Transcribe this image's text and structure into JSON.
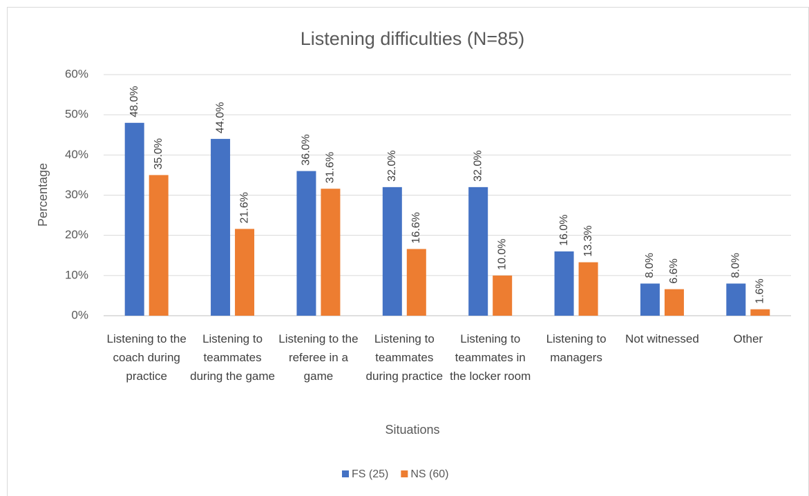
{
  "chart_data": {
    "type": "bar",
    "title": "Listening difficulties (N=85)",
    "x_label": "Situations",
    "y_label": "Percentage",
    "categories": [
      "Listening to the coach during practice",
      "Listening to teammates during the game",
      "Listening to the referee in a game",
      "Listening to teammates during practice",
      "Listening to teammates in the locker room",
      "Listening to managers",
      "Not witnessed",
      "Other"
    ],
    "series": [
      {
        "name": "FS (25)",
        "color": "#4472c4",
        "values": [
          48,
          44,
          36,
          32,
          32,
          16,
          8,
          8
        ],
        "value_labels": [
          "48.0%",
          "44.0%",
          "36.0%",
          "32.0%",
          "32.0%",
          "16.0%",
          "8.0%",
          "8.0%"
        ]
      },
      {
        "name": "NS (60)",
        "color": "#ed7d31",
        "values": [
          35,
          21.6,
          31.6,
          16.6,
          10,
          13.3,
          6.6,
          1.6
        ],
        "value_labels": [
          "35.0%",
          "21.6%",
          "31.6%",
          "16.6%",
          "10.0%",
          "13.3%",
          "6.6%",
          "1.6%"
        ]
      }
    ],
    "ylim": [
      0,
      60
    ],
    "yticks": [
      {
        "value": 0,
        "label": "0%"
      },
      {
        "value": 10,
        "label": "10%"
      },
      {
        "value": 20,
        "label": "20%"
      },
      {
        "value": 30,
        "label": "30%"
      },
      {
        "value": 40,
        "label": "40%"
      },
      {
        "value": 50,
        "label": "50%"
      },
      {
        "value": 60,
        "label": "60%"
      }
    ],
    "grid": true,
    "legend": "bottom"
  }
}
